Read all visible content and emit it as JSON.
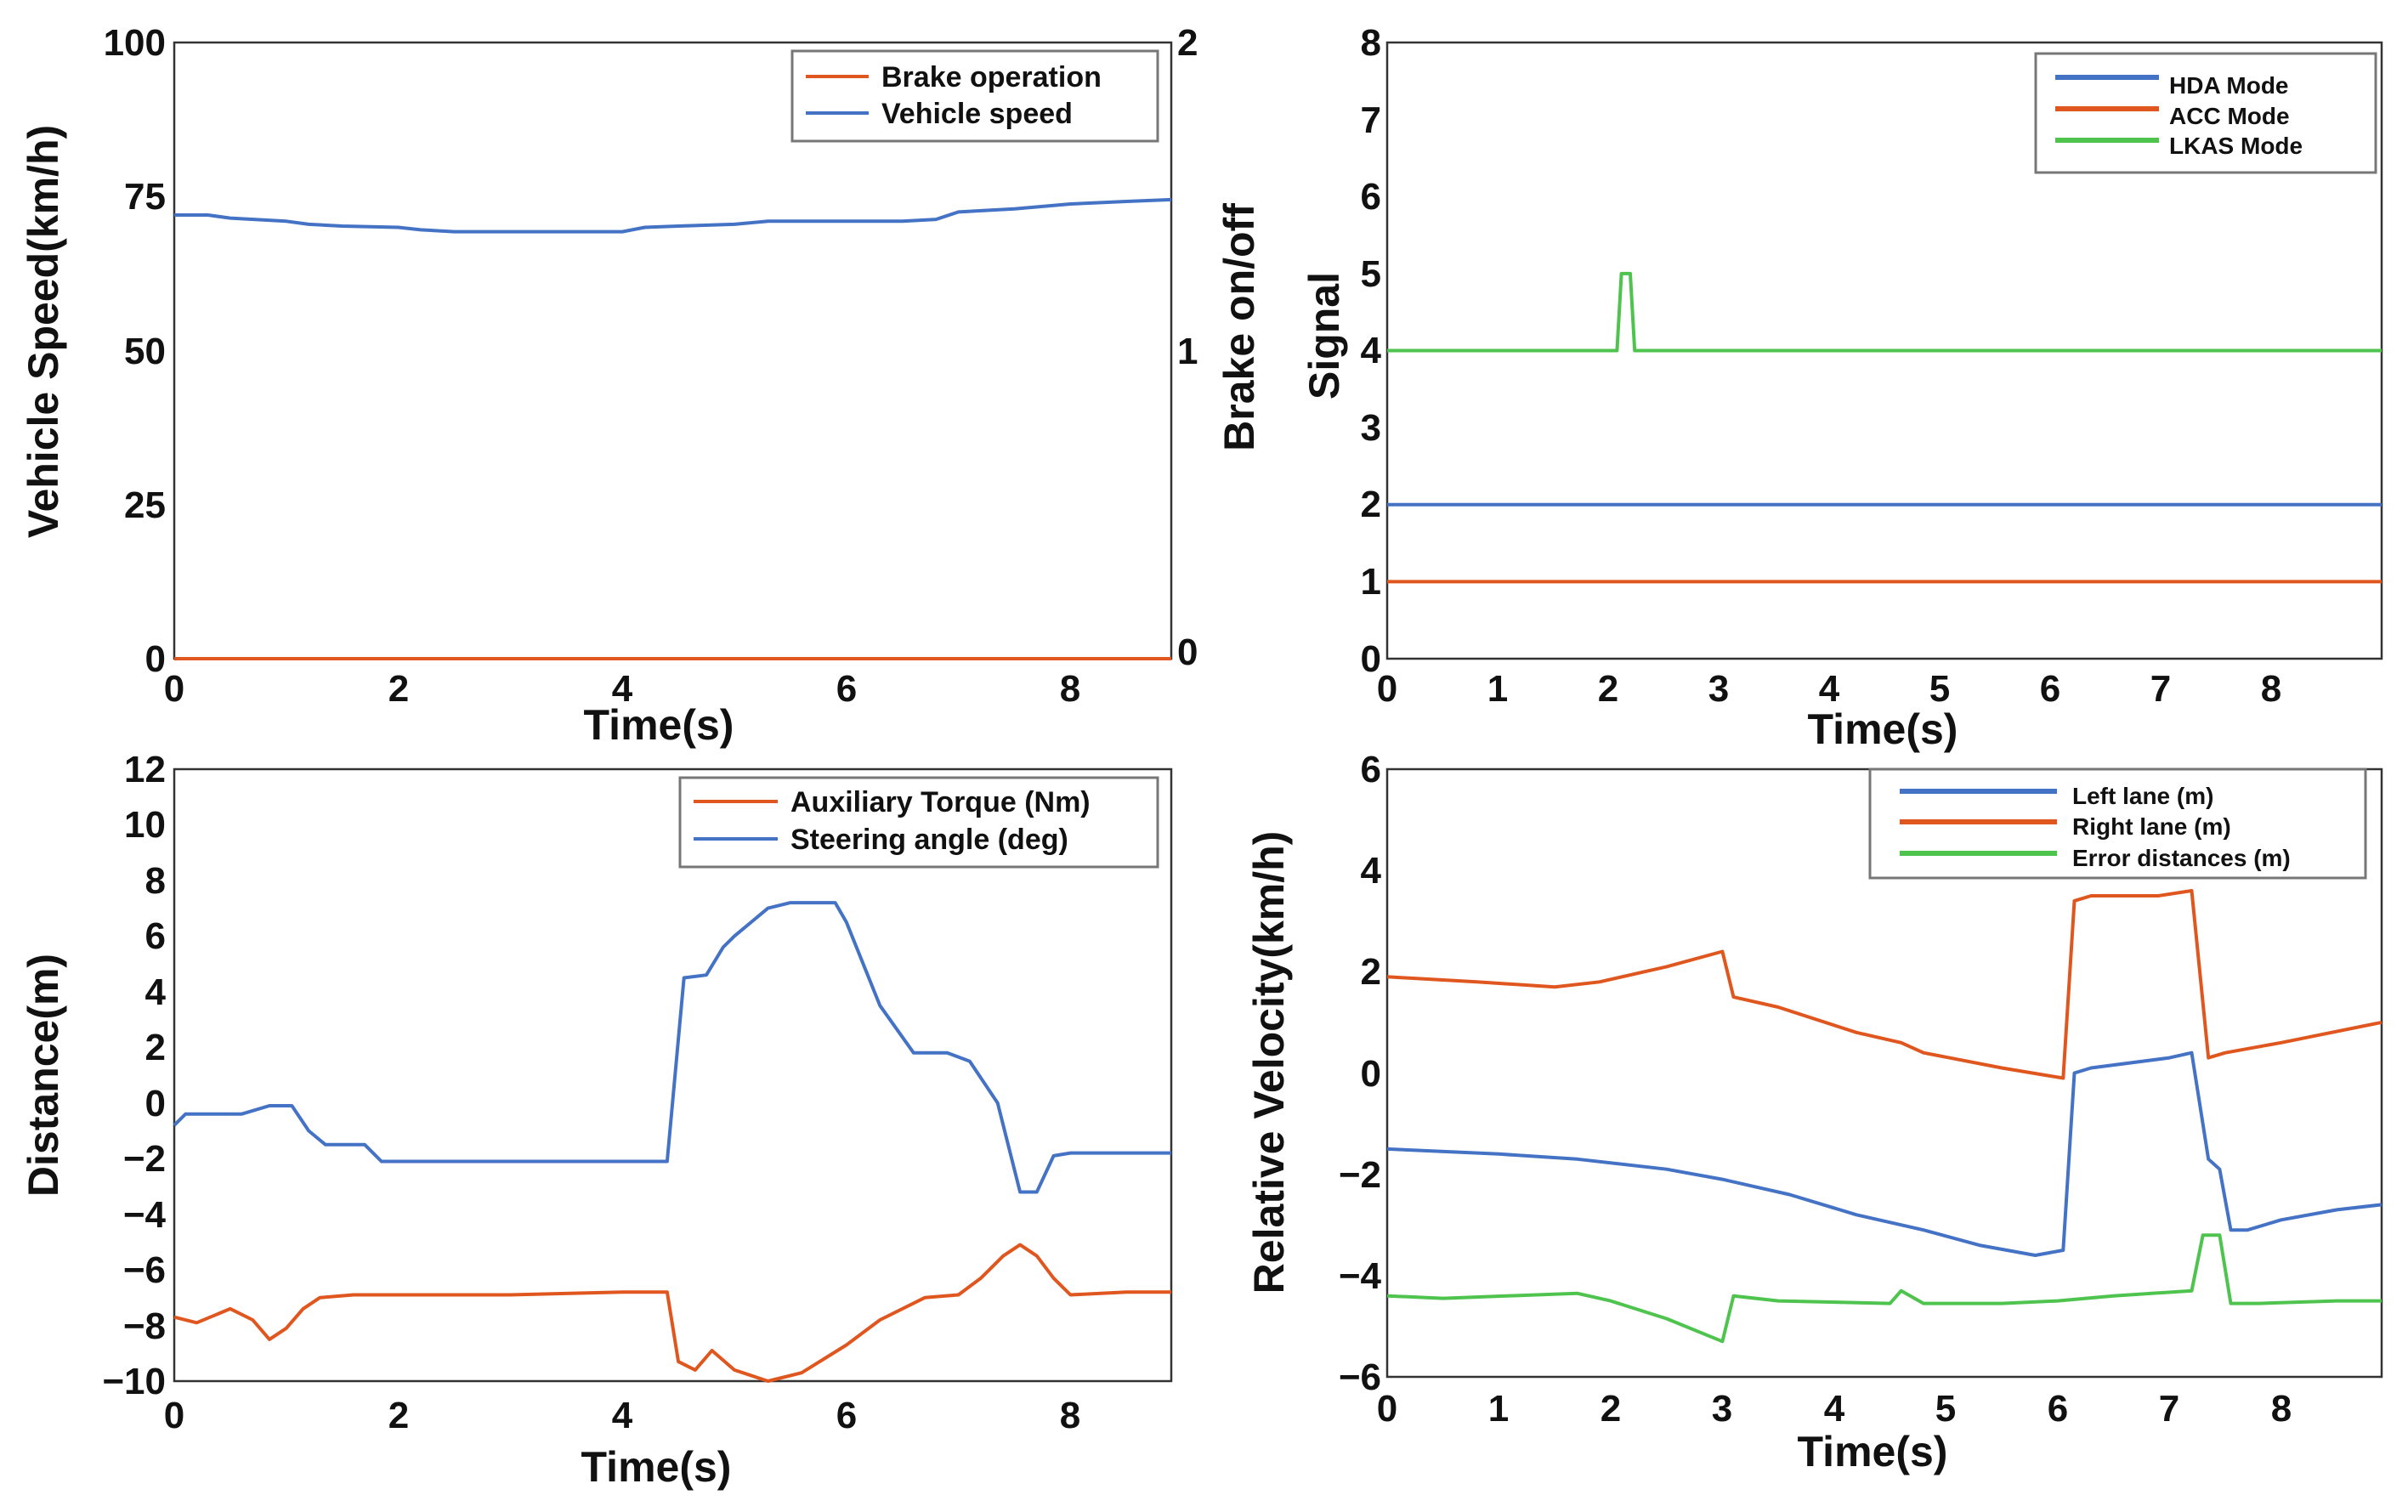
{
  "colors": {
    "blue": "#4472c4",
    "orange": "#e0561f",
    "green": "#4ec44e"
  },
  "chart_data": [
    {
      "id": "a",
      "type": "line",
      "xlabel": "Time(s)",
      "ylabel": "Vehicle Speed(km/h)",
      "y2label": "Brake on/off",
      "xlim": [
        0,
        8.9
      ],
      "ylim": [
        0,
        100
      ],
      "y2lim": [
        0,
        2
      ],
      "xticks": [
        "0",
        "2",
        "4",
        "6",
        "8"
      ],
      "yticks": [
        "0",
        "25",
        "50",
        "75",
        "100"
      ],
      "y2ticks": [
        "0",
        "1",
        "2"
      ],
      "legend_position": "top-right",
      "series": [
        {
          "name": "Brake operation",
          "color": "orange",
          "axis": "right",
          "x": [
            0,
            8.9
          ],
          "y": [
            0,
            0
          ]
        },
        {
          "name": "Vehicle speed",
          "color": "blue",
          "axis": "left",
          "x": [
            0,
            0.3,
            0.5,
            1.0,
            1.2,
            1.5,
            2.0,
            2.2,
            2.5,
            3.0,
            3.5,
            4.0,
            4.2,
            4.5,
            5.0,
            5.3,
            5.5,
            6.0,
            6.5,
            6.8,
            7.0,
            7.5,
            8.0,
            8.5,
            8.9
          ],
          "y": [
            72,
            72,
            71.5,
            71,
            70.5,
            70.2,
            70,
            69.6,
            69.3,
            69.3,
            69.3,
            69.3,
            70,
            70.2,
            70.5,
            71,
            71,
            71,
            71,
            71.3,
            72.5,
            73,
            73.8,
            74.2,
            74.5
          ]
        }
      ]
    },
    {
      "id": "b",
      "type": "line",
      "xlabel": "Time(s)",
      "ylabel": "Signal",
      "xlim": [
        0,
        9
      ],
      "ylim": [
        0,
        8
      ],
      "xticks": [
        "0",
        "1",
        "2",
        "3",
        "4",
        "5",
        "6",
        "7",
        "8"
      ],
      "yticks": [
        "0",
        "1",
        "2",
        "3",
        "4",
        "5",
        "6",
        "7",
        "8"
      ],
      "legend_position": "top-right",
      "series": [
        {
          "name": "HDA Mode",
          "color": "blue",
          "x": [
            0,
            9
          ],
          "y": [
            2,
            2
          ]
        },
        {
          "name": "ACC Mode",
          "color": "orange",
          "x": [
            0,
            9
          ],
          "y": [
            1,
            1
          ]
        },
        {
          "name": "LKAS Mode",
          "color": "green",
          "x": [
            0,
            2.08,
            2.12,
            2.2,
            2.24,
            9
          ],
          "y": [
            4,
            4,
            5,
            5,
            4,
            4
          ]
        }
      ]
    },
    {
      "id": "c",
      "type": "line",
      "xlabel": "Time(s)",
      "ylabel": "Distance(m)",
      "xlim": [
        0,
        8.9
      ],
      "ylim": [
        -10,
        12
      ],
      "xticks": [
        "0",
        "2",
        "4",
        "6",
        "8"
      ],
      "yticks": [
        "−10",
        "−8",
        "−6",
        "−4",
        "−2",
        "0",
        "2",
        "4",
        "6",
        "8",
        "10",
        "12"
      ],
      "legend_position": "top-right",
      "series": [
        {
          "name": "Auxiliary Torque (Nm)",
          "color": "orange",
          "x": [
            0,
            0.2,
            0.5,
            0.7,
            0.85,
            1.0,
            1.15,
            1.3,
            1.6,
            2.0,
            3.0,
            4.0,
            4.4,
            4.5,
            4.65,
            4.8,
            5.0,
            5.3,
            5.6,
            6.0,
            6.3,
            6.7,
            7.0,
            7.2,
            7.4,
            7.55,
            7.7,
            7.85,
            8.0,
            8.5,
            8.9
          ],
          "y": [
            -7.7,
            -7.9,
            -7.4,
            -7.8,
            -8.5,
            -8.1,
            -7.4,
            -7,
            -6.9,
            -6.9,
            -6.9,
            -6.8,
            -6.8,
            -9.3,
            -9.6,
            -8.9,
            -9.6,
            -10,
            -9.7,
            -8.7,
            -7.8,
            -7,
            -6.9,
            -6.3,
            -5.5,
            -5.1,
            -5.5,
            -6.3,
            -6.9,
            -6.8,
            -6.8
          ]
        },
        {
          "name": "Steering angle (deg)",
          "color": "blue",
          "x": [
            0,
            0.1,
            0.6,
            0.85,
            1.05,
            1.2,
            1.35,
            1.7,
            1.85,
            2.0,
            3.0,
            4.0,
            4.4,
            4.55,
            4.75,
            4.9,
            5.0,
            5.3,
            5.5,
            5.9,
            6.0,
            6.3,
            6.6,
            6.9,
            7.1,
            7.35,
            7.55,
            7.7,
            7.85,
            8.0,
            8.5,
            8.9
          ],
          "y": [
            -0.8,
            -0.4,
            -0.4,
            -0.1,
            -0.1,
            -1,
            -1.5,
            -1.5,
            -2.1,
            -2.1,
            -2.1,
            -2.1,
            -2.1,
            4.5,
            4.6,
            5.6,
            6,
            7,
            7.2,
            7.2,
            6.5,
            3.5,
            1.8,
            1.8,
            1.5,
            0,
            -3.2,
            -3.2,
            -1.9,
            -1.8,
            -1.8,
            -1.8
          ]
        }
      ]
    },
    {
      "id": "d",
      "type": "line",
      "xlabel": "Time(s)",
      "ylabel": "Relative Velocity(km/h)",
      "xlim": [
        0,
        8.9
      ],
      "ylim": [
        -6,
        6
      ],
      "xticks": [
        "0",
        "1",
        "2",
        "3",
        "4",
        "5",
        "6",
        "7",
        "8"
      ],
      "yticks": [
        "−6",
        "−4",
        "−2",
        "0",
        "2",
        "4",
        "6"
      ],
      "legend_position": "top-right",
      "series": [
        {
          "name": "Left lane  (m)",
          "color": "blue",
          "x": [
            0,
            1,
            1.7,
            2.5,
            3,
            3.6,
            4.2,
            4.8,
            5.3,
            5.8,
            6.05,
            6.15,
            6.3,
            7.0,
            7.2,
            7.35,
            7.45,
            7.55,
            7.7,
            8.0,
            8.5,
            8.9
          ],
          "y": [
            -1.5,
            -1.6,
            -1.7,
            -1.9,
            -2.1,
            -2.4,
            -2.8,
            -3.1,
            -3.4,
            -3.6,
            -3.5,
            0,
            0.1,
            0.3,
            0.4,
            -1.7,
            -1.9,
            -3.1,
            -3.1,
            -2.9,
            -2.7,
            -2.6
          ]
        },
        {
          "name": "Right lane  (m)",
          "color": "orange",
          "x": [
            0,
            0.8,
            1.5,
            1.9,
            2.5,
            3.0,
            3.1,
            3.5,
            4.2,
            4.6,
            4.8,
            5.5,
            6.05,
            6.15,
            6.3,
            6.9,
            7.2,
            7.35,
            7.5,
            8.0,
            8.9
          ],
          "y": [
            1.9,
            1.8,
            1.7,
            1.8,
            2.1,
            2.4,
            1.5,
            1.3,
            0.8,
            0.6,
            0.4,
            0.1,
            -0.1,
            3.4,
            3.5,
            3.5,
            3.6,
            0.3,
            0.4,
            0.6,
            1.0
          ]
        },
        {
          "name": "Error distances  (m)",
          "color": "green",
          "x": [
            0,
            0.5,
            1.7,
            2.0,
            2.5,
            3.0,
            3.1,
            3.5,
            4.5,
            4.6,
            4.8,
            5.5,
            6.0,
            6.5,
            7.2,
            7.3,
            7.45,
            7.55,
            7.8,
            8.5,
            8.9
          ],
          "y": [
            -4.4,
            -4.45,
            -4.35,
            -4.5,
            -4.85,
            -5.3,
            -4.4,
            -4.5,
            -4.55,
            -4.3,
            -4.55,
            -4.55,
            -4.5,
            -4.4,
            -4.3,
            -3.2,
            -3.2,
            -4.55,
            -4.55,
            -4.5,
            -4.5
          ]
        }
      ]
    }
  ]
}
